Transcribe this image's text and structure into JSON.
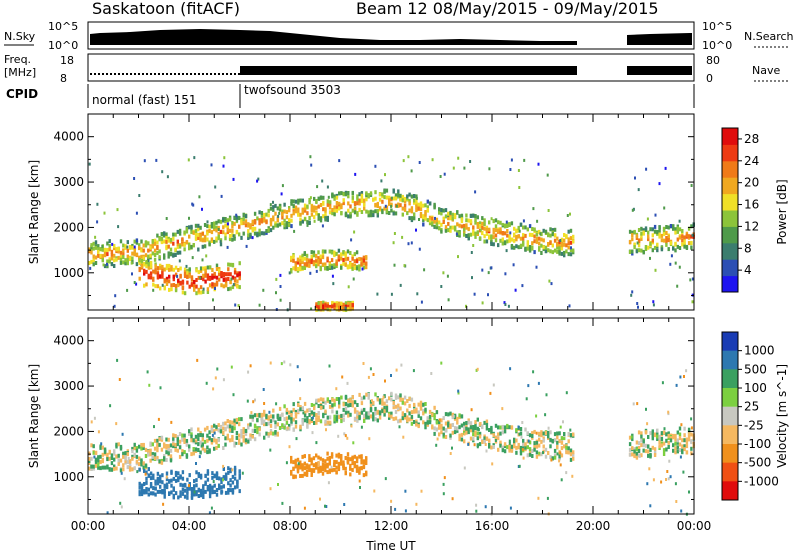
{
  "header": {
    "station": "Saskatoon (fitACF)",
    "beam_date": "Beam 12 08/May/2015 - 09/May/2015"
  },
  "top_panels": {
    "nsky_label": "N.Sky",
    "nsky_ticks": [
      "10^5",
      "10^0"
    ],
    "nsearch_label": "N.Search",
    "nsearch_ticks": [
      "10^5",
      "10^0"
    ],
    "freq_label_1": "Freq.",
    "freq_label_2": "[MHz]",
    "freq_ticks": [
      "18",
      "8"
    ],
    "nave_label": "Nave",
    "nave_ticks": [
      "80",
      "0"
    ],
    "cpid_label": "CPID",
    "cpid_segments": [
      {
        "name": "normal (fast) 151",
        "start": 0.0,
        "end": 6.0
      },
      {
        "name": "twofsound 3503",
        "start": 6.0,
        "end": 24.0
      }
    ]
  },
  "chart_data": [
    {
      "type": "heatmap",
      "title": "",
      "xlabel": "Time UT",
      "ylabel": "Slant Range [km]",
      "xlim": [
        0,
        24
      ],
      "ylim": [
        180,
        4500
      ],
      "x_ticks": [
        "00:00",
        "04:00",
        "08:00",
        "12:00",
        "16:00",
        "20:00",
        "00:00"
      ],
      "y_ticks": [
        1000,
        2000,
        3000,
        4000
      ],
      "colorbar": {
        "label": "Power [dB]",
        "ticks": [
          4,
          8,
          12,
          16,
          20,
          24,
          28
        ],
        "range": [
          0,
          30
        ],
        "colors": [
          "#1e14f0",
          "#2c4fb4",
          "#3b7d6e",
          "#4f9a4a",
          "#8cc43a",
          "#f0e028",
          "#f0a820",
          "#f07a18",
          "#ee3a12",
          "#e00c0c"
        ]
      },
      "data_gap_hours": [
        19.2,
        21.4
      ],
      "echo_bands": [
        {
          "x": [
            0.0,
            2.0,
            4.0,
            6.0,
            8.0,
            10.0,
            12.0,
            13.0,
            14.0,
            16.0,
            18.0,
            19.2,
            21.4,
            24.0
          ],
          "y": [
            1400,
            1450,
            1750,
            2000,
            2300,
            2500,
            2550,
            2400,
            2150,
            1900,
            1700,
            1650,
            1700,
            1800
          ],
          "width": 400,
          "power": 22
        },
        {
          "x": [
            2.0,
            4.0,
            6.0
          ],
          "y": [
            1000,
            800,
            950
          ],
          "width": 400,
          "power": 28
        },
        {
          "x": [
            8.0,
            9.5,
            11.0
          ],
          "y": [
            1200,
            1300,
            1250
          ],
          "width": 300,
          "power": 24
        },
        {
          "x": [
            9.0,
            10.5
          ],
          "y": [
            260,
            260
          ],
          "width": 120,
          "power": 28
        }
      ],
      "nsky_shown": true,
      "nsearch_shown": true,
      "freq_shown": true,
      "nave_shown": true
    },
    {
      "type": "heatmap",
      "title": "",
      "xlabel": "Time UT",
      "ylabel": "Slant Range [km]",
      "xlim": [
        0,
        24
      ],
      "ylim": [
        180,
        4500
      ],
      "x_ticks": [
        "00:00",
        "04:00",
        "08:00",
        "12:00",
        "16:00",
        "20:00",
        "00:00"
      ],
      "y_ticks": [
        1000,
        2000,
        3000,
        4000
      ],
      "colorbar": {
        "label": "Velocity [m s^-1]",
        "ticks": [
          "1000",
          "500",
          "100",
          "25",
          "-25",
          "-100",
          "-500",
          "-1000"
        ],
        "colors": [
          "#1a3cb4",
          "#2d78b0",
          "#3aa060",
          "#7cd040",
          "#c8c8c0",
          "#f5b860",
          "#f0901c",
          "#f05014",
          "#e00c0c"
        ]
      },
      "data_gap_hours": [
        19.2,
        21.4
      ],
      "echo_bands": [
        {
          "x": [
            0.0,
            2.0,
            4.0,
            6.0,
            8.0,
            10.0,
            12.0,
            13.0,
            14.0,
            16.0,
            18.0,
            19.2,
            21.4,
            24.0
          ],
          "y": [
            1400,
            1450,
            1750,
            2000,
            2300,
            2500,
            2550,
            2400,
            2150,
            1900,
            1700,
            1650,
            1700,
            1800
          ],
          "width": 420,
          "velocity": 0
        },
        {
          "x": [
            2.0,
            4.0,
            6.0
          ],
          "y": [
            900,
            800,
            950
          ],
          "width": 420,
          "velocity": 300
        },
        {
          "x": [
            8.0,
            9.5,
            11.0
          ],
          "y": [
            1200,
            1300,
            1250
          ],
          "width": 320,
          "velocity": -400
        }
      ]
    }
  ]
}
